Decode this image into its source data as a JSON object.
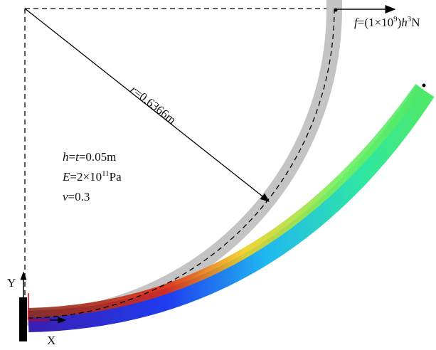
{
  "force_label": {
    "symbol": "f",
    "part1": "=(1×10",
    "exp1": "9",
    "part2": ")",
    "var": "h",
    "exp2": "3",
    "unit": "N"
  },
  "radius_label": {
    "symbol": "r",
    "text": "=0.6366m"
  },
  "parameters": {
    "thickness": {
      "h": "h",
      "eq1": "=",
      "t": "t",
      "rest": "=0.05m"
    },
    "modulus": {
      "symbol": "E",
      "part1": "=2×10",
      "exp": "11",
      "unit": "Pa"
    },
    "poisson": {
      "symbol": "v",
      "rest": "=0.3"
    }
  },
  "axes": {
    "y": "Y",
    "x": "X"
  }
}
